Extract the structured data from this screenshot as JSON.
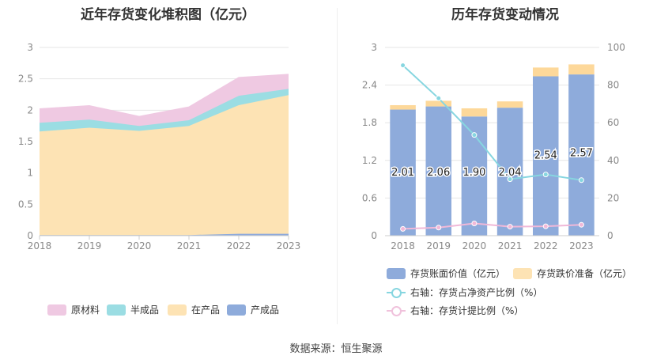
{
  "source": "数据来源：恒生聚源",
  "icons": [
    "legend-swatch",
    "legend-ring-marker"
  ],
  "chart_data": [
    {
      "type": "area",
      "stacked": true,
      "title": "近年存货变化堆积图（亿元）",
      "categories": [
        "2018",
        "2019",
        "2020",
        "2021",
        "2022",
        "2023"
      ],
      "y_ticks": [
        "0",
        "0.5",
        "1",
        "1.5",
        "2",
        "2.5",
        "3"
      ],
      "ylim": [
        0,
        3
      ],
      "grid": true,
      "legend_position": "bottom",
      "series": [
        {
          "name": "产成品",
          "color": "#8eabdb",
          "values": [
            0.01,
            0.01,
            0.01,
            0.01,
            0.03,
            0.03
          ]
        },
        {
          "name": "在产品",
          "color": "#fde3b4",
          "values": [
            1.65,
            1.71,
            1.66,
            1.74,
            2.05,
            2.21
          ]
        },
        {
          "name": "半成品",
          "color": "#9bdde3",
          "values": [
            0.14,
            0.13,
            0.08,
            0.09,
            0.15,
            0.1
          ]
        },
        {
          "name": "原材料",
          "color": "#efc9e2",
          "values": [
            0.22,
            0.22,
            0.15,
            0.21,
            0.29,
            0.23
          ]
        }
      ],
      "legend_order": [
        "原材料",
        "半成品",
        "在产品",
        "产成品"
      ]
    },
    {
      "type": "bar",
      "stacked": true,
      "title": "历年存货变动情况",
      "categories": [
        "2018",
        "2019",
        "2020",
        "2021",
        "2022",
        "2023"
      ],
      "y_ticks_left": [
        "0",
        "0.6",
        "1.2",
        "1.8",
        "2.4",
        "3"
      ],
      "ylim_left": [
        0,
        3
      ],
      "y_ticks_right": [
        "0",
        "20",
        "40",
        "60",
        "80",
        "100"
      ],
      "ylim_right": [
        0,
        100
      ],
      "legend_position": "bottom",
      "series": [
        {
          "name": "存货账面价值（亿元）",
          "color": "#8eabdb",
          "axis": "left",
          "values": [
            2.01,
            2.06,
            1.9,
            2.04,
            2.54,
            2.57
          ],
          "labels": [
            "2.01",
            "2.06",
            "1.90",
            "2.04",
            "2.54",
            "2.57"
          ]
        },
        {
          "name": "存货跌价准备（亿元）",
          "color": "#fdd89a",
          "axis": "left",
          "values": [
            0.07,
            0.09,
            0.13,
            0.1,
            0.14,
            0.16
          ]
        }
      ],
      "lines": [
        {
          "name": "右轴：存货占净资产比例（%）",
          "color": "#87d6e0",
          "axis": "right",
          "values": [
            90.5,
            73,
            53.5,
            30,
            32.5,
            29.5
          ]
        },
        {
          "name": "右轴：存货计提比例（%）",
          "color": "#f0b8d8",
          "axis": "right",
          "values": [
            3.6,
            4.3,
            6.5,
            4.8,
            5.0,
            5.8
          ]
        }
      ]
    }
  ]
}
